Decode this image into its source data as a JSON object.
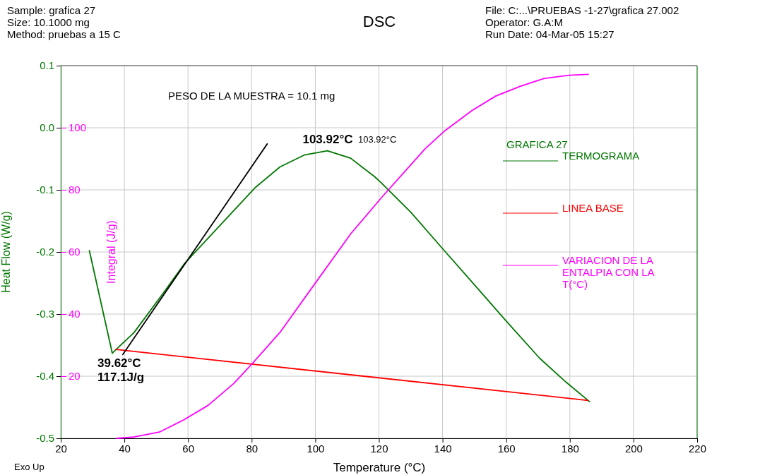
{
  "chart_data": {
    "type": "line",
    "title": "DSC",
    "xlabel": "Temperature (°C)",
    "ylabel": "Heat Flow (W/g)",
    "y2label": "Integral (J/g)",
    "legend_title": "GRAFICA 27",
    "legend": "right",
    "grid": true,
    "xlim": [
      20,
      220
    ],
    "xticks": [
      20,
      40,
      60,
      80,
      100,
      120,
      140,
      160,
      180,
      200,
      220
    ],
    "ylim": [
      -0.5,
      0.1
    ],
    "yticks": [
      -0.5,
      -0.4,
      -0.3,
      -0.2,
      -0.1,
      {
        "value": 0,
        "label": "0.0"
      },
      0.1
    ],
    "y2lim": [
      0,
      120
    ],
    "y2ticks": [
      20,
      40,
      60,
      80,
      100
    ],
    "series": [
      {
        "name": "TERMOGRAMA",
        "color": "#007700",
        "x": [
          29.0,
          36.2,
          37.4,
          43.0,
          52.1,
          59.0,
          81.2,
          88.9,
          96.5,
          103.8,
          111.1,
          118.7,
          120.8,
          130.0,
          139.9,
          151.4,
          159.8,
          170.5,
          178.9,
          186.2
        ],
        "values": [
          -0.198,
          -0.363,
          -0.357,
          -0.33,
          -0.267,
          -0.218,
          -0.096,
          -0.063,
          -0.044,
          -0.037,
          -0.049,
          -0.079,
          -0.089,
          -0.136,
          -0.194,
          -0.261,
          -0.31,
          -0.371,
          -0.41,
          -0.441
        ]
      },
      {
        "name": "LINEA BASE",
        "color": "#ff0000",
        "x": [
          37.4,
          185.7
        ],
        "values": [
          -0.357,
          -0.439
        ]
      },
      {
        "name": "VARIACION DE LA ENTALPIA CON LA T(°C)",
        "color": "#ff00ff",
        "axis": "y2",
        "x": [
          37.6,
          43.0,
          51.0,
          58.6,
          66.3,
          74.3,
          80.4,
          88.9,
          99.6,
          111.1,
          120.8,
          134.5,
          140.8,
          149.2,
          156.7,
          164.5,
          172.0,
          179.7,
          185.8
        ],
        "values": [
          0,
          0.4,
          2,
          5.9,
          10.6,
          17.6,
          24.3,
          34.1,
          49.4,
          65.8,
          77.5,
          93.2,
          99.1,
          105.5,
          110.2,
          113.4,
          115.9,
          116.9,
          117.2
        ]
      },
      {
        "color": "#000000",
        "x": [
          39.5,
          84.9
        ],
        "values": [
          -0.365,
          -0.026
        ]
      }
    ],
    "annotations": [
      "Sample: grafica 27",
      "Size:   10.1000 mg",
      "Method: pruebas a 15 C",
      "File: C:...\\PRUEBAS -1-27\\grafica 27.002",
      "Operator: G.A:M",
      "Run Date: 04-Mar-05 15:27",
      "Exo Up",
      "PESO DE LA MUESTRA = 10.1 mg",
      "103.92°C",
      "103.92°C",
      "39.62°C",
      "117.1J/g"
    ]
  }
}
